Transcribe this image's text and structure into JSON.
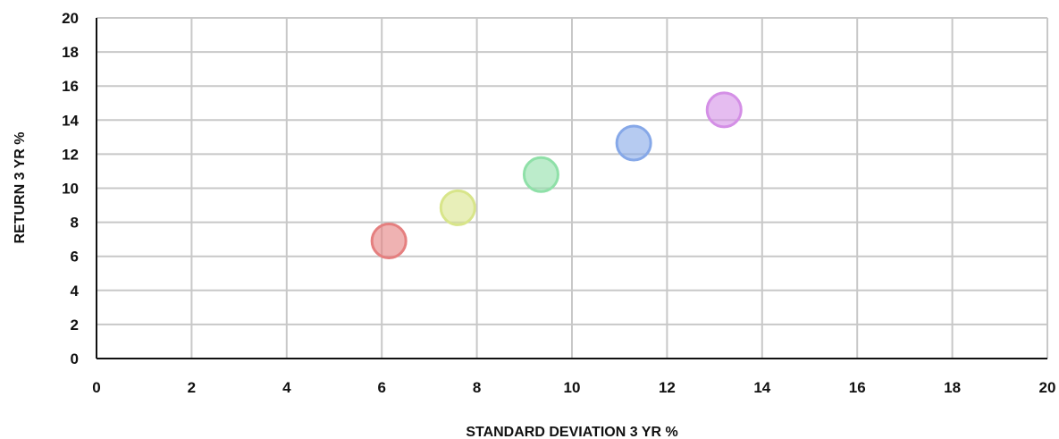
{
  "chart_data": {
    "type": "scatter",
    "xlabel": "STANDARD DEVIATION 3 YR %",
    "ylabel": "RETURN 3 YR %",
    "xlim": [
      0,
      20
    ],
    "ylim": [
      0,
      20
    ],
    "x_ticks": [
      "0",
      "2",
      "4",
      "6",
      "8",
      "10",
      "12",
      "14",
      "16",
      "18",
      "20"
    ],
    "y_ticks": [
      "0",
      "2",
      "4",
      "6",
      "8",
      "10",
      "12",
      "14",
      "16",
      "18",
      "20"
    ],
    "grid": true,
    "legend": false,
    "points": [
      {
        "x": 6.15,
        "y": 6.9,
        "color": "#e57f7f"
      },
      {
        "x": 7.6,
        "y": 8.85,
        "color": "#d8e58a"
      },
      {
        "x": 9.35,
        "y": 10.8,
        "color": "#8fe0a8"
      },
      {
        "x": 11.3,
        "y": 12.65,
        "color": "#86a8e8"
      },
      {
        "x": 13.2,
        "y": 14.6,
        "color": "#d48fe6"
      }
    ]
  }
}
